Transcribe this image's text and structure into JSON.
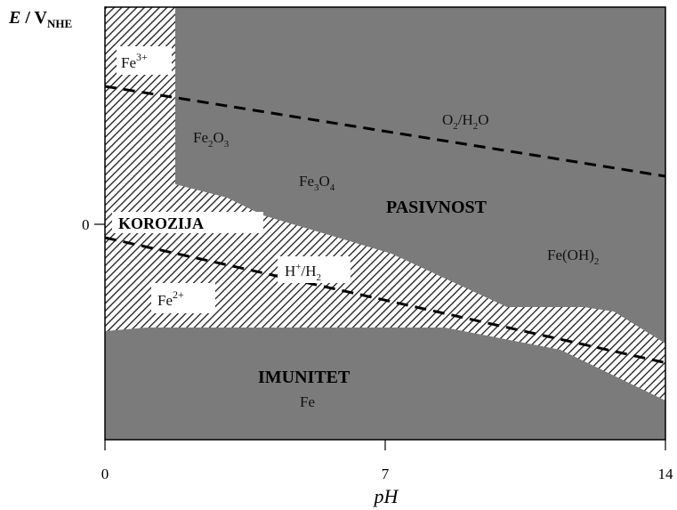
{
  "axes": {
    "y_label_main": "E",
    "y_label_sep": " / V",
    "y_label_sub": "NHE",
    "x_label": "pH",
    "x_ticks": [
      {
        "value": 0,
        "label": "0"
      },
      {
        "value": 7,
        "label": "7"
      },
      {
        "value": 14,
        "label": "14"
      }
    ],
    "y_ticks": [
      {
        "label": "0"
      }
    ]
  },
  "regions": {
    "corrosion_label": "KOROZIJA",
    "passivity_label": "PASIVNOST",
    "immunity_label": "IMUNITET"
  },
  "species": {
    "fe3": {
      "base": "Fe",
      "sup": "3+"
    },
    "fe2": {
      "base": "Fe",
      "sup": "2+"
    },
    "fe2o3": {
      "a": "Fe",
      "b": "2",
      "c": "O",
      "d": "3"
    },
    "fe3o4": {
      "a": "Fe",
      "b": "3",
      "c": "O",
      "d": "4"
    },
    "feoh2": {
      "a": "Fe(OH)",
      "b": "2"
    },
    "fe": "Fe"
  },
  "lines": {
    "o2_h2o": {
      "a": "O",
      "b": "2",
      "c": "/H",
      "d": "2",
      "e": "O"
    },
    "h_h2": {
      "a": "H",
      "b": "+",
      "c": "/H",
      "d": "2"
    }
  },
  "colors": {
    "stable_region": "#7b7b7b",
    "hatch": "#1a1a1a",
    "background": "#ffffff"
  }
}
